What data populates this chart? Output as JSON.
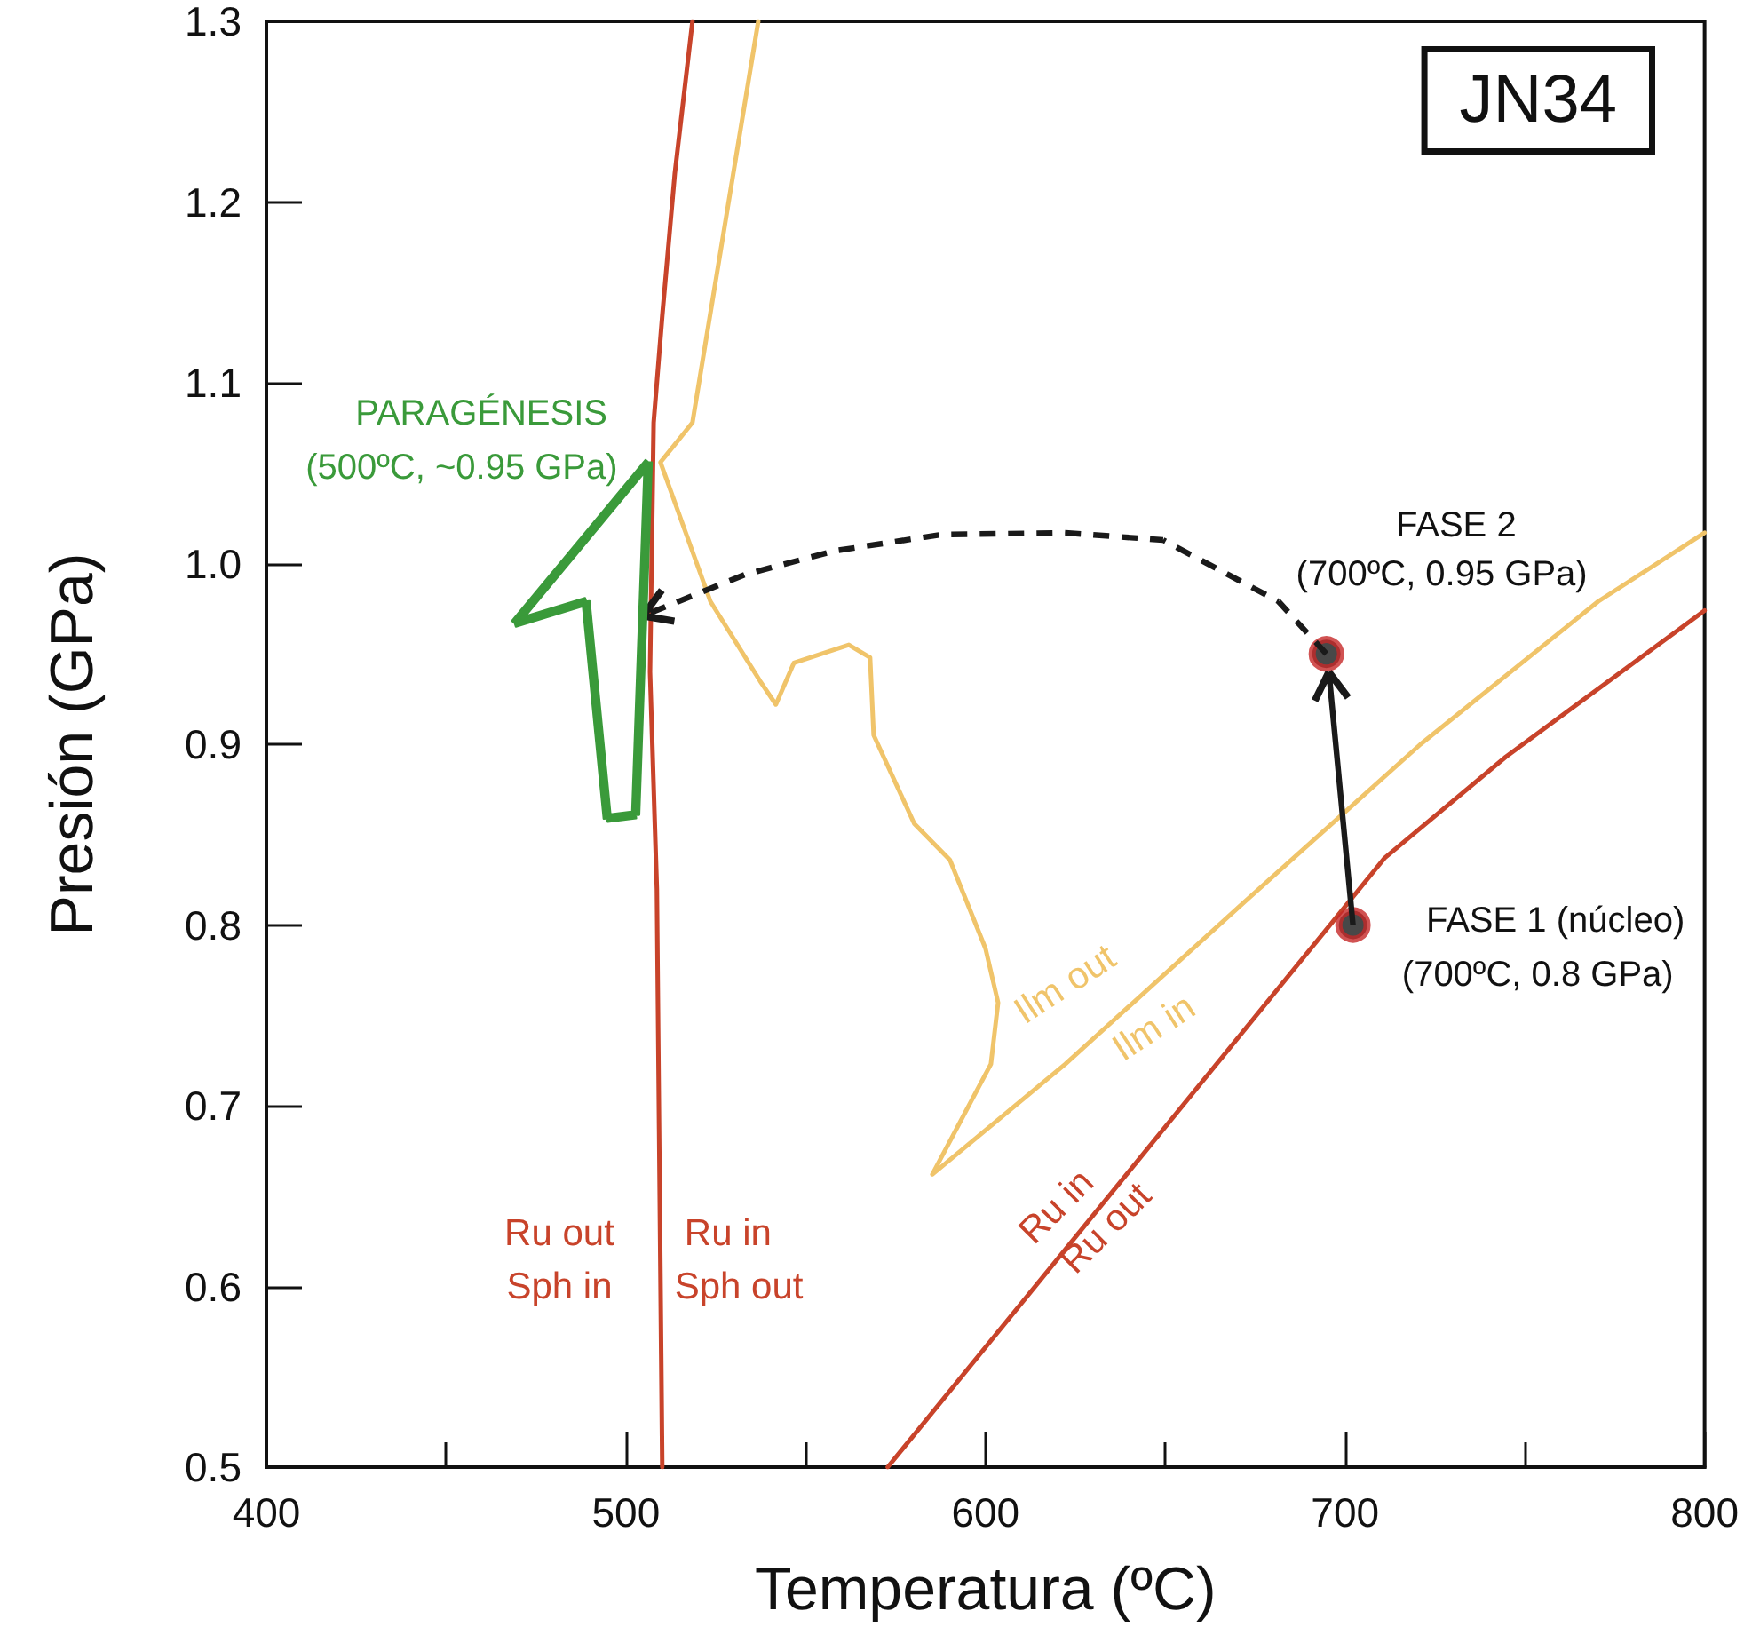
{
  "chart_data": {
    "type": "line",
    "xlabel": "Temperatura (ºC)",
    "ylabel": "Presión (GPa)",
    "xlim": [
      400,
      800
    ],
    "ylim": [
      0.5,
      1.3
    ],
    "xticks": [
      400,
      {
        "value": 450,
        "label": null
      },
      500,
      {
        "value": 550,
        "label": null
      },
      600,
      {
        "value": 650,
        "label": null
      },
      700,
      {
        "value": 750,
        "label": null
      },
      800
    ],
    "yticks": [
      0.5,
      0.6,
      0.7,
      0.8,
      0.9,
      {
        "value": 1.0,
        "label": "1.0"
      },
      1.1,
      1.2,
      1.3
    ],
    "grid": false,
    "marker": "none",
    "line_style": "solid",
    "series": [
      {
        "color": "#c8432a",
        "x": [
          510.1,
          508.6,
          506.7,
          507.7,
          510.1,
          513.6,
          518.5
        ],
        "values": [
          0.5,
          0.82,
          0.94,
          1.078,
          1.137,
          1.216,
          1.3
        ]
      },
      {
        "color": "#c8432a",
        "x": [
          572.8,
          711,
          744.7,
          800
        ],
        "values": [
          0.5,
          0.837,
          0.893,
          0.974
        ]
      },
      {
        "color": "#f0c46a",
        "x": [
          536.8,
          518.5,
          509.6,
          523.5,
          537.3,
          541.7,
          546.7,
          562,
          567.9,
          568.9,
          580.2,
          590.1,
          600,
          603.5,
          601.5,
          585.2,
          622.2,
          671.6,
          721,
          770.4,
          800
        ],
        "values": [
          1.3,
          1.078,
          1.056,
          0.979,
          0.935,
          0.922,
          0.945,
          0.955,
          0.948,
          0.905,
          0.856,
          0.836,
          0.787,
          0.757,
          0.723,
          0.662,
          0.723,
          0.812,
          0.9,
          0.979,
          1.017
        ]
      },
      {
        "type": "scatter",
        "color": "#c62828",
        "marker": "circle",
        "x": [
          702.2,
          694.8
        ],
        "values": [
          0.8,
          0.95
        ]
      }
    ],
    "annotations": [
      "JN34",
      "PARAGÉNESIS",
      "(500ºC, ~0.95 GPa)",
      "FASE 2",
      "(700ºC, 0.95 GPa)",
      "FASE 1 (núcleo)",
      "(700ºC, 0.8 GPa)",
      "Ru out",
      "Sph in",
      "Ru in",
      "Sph out",
      "Ilm out",
      "Ilm in",
      "Ru in",
      "Ru out"
    ]
  }
}
